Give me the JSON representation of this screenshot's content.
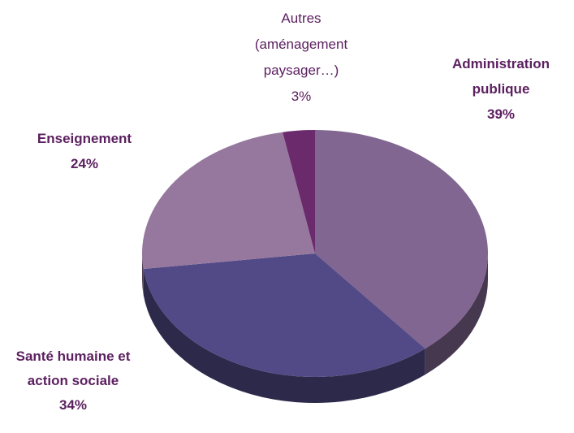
{
  "chart_data": {
    "type": "pie",
    "categories": [
      "Administration publique",
      "Santé humaine et action sociale",
      "Enseignement",
      "Autres (aménagement paysager…)"
    ],
    "values": [
      39,
      34,
      24,
      3
    ],
    "value_labels": [
      "39%",
      "34%",
      "24%",
      "3%"
    ],
    "colors": [
      "#806690",
      "#524a86",
      "#96789e",
      "#6b2a6b"
    ]
  }
}
